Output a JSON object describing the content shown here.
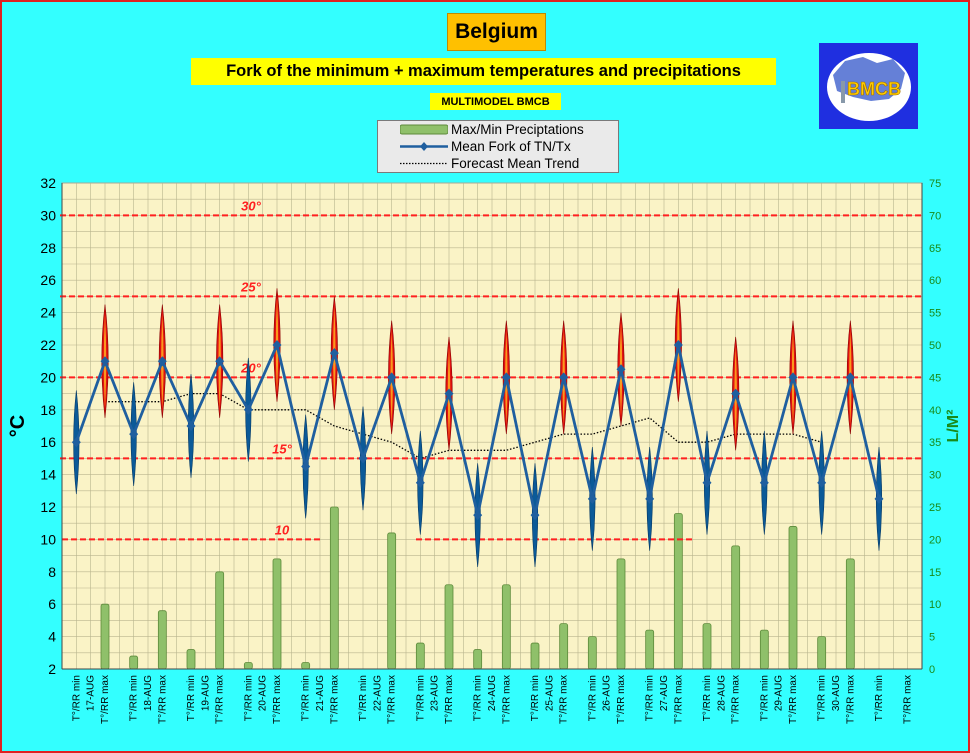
{
  "header": {
    "title": "Belgium",
    "subtitle": "Fork of the minimum + maximum temperatures and precipitations",
    "model": "MULTIMODEL BMCB"
  },
  "logo": {
    "text": "BMCB"
  },
  "legend": {
    "items": [
      {
        "label": "Max/Min Preciptations",
        "icon": "green-bar-icon"
      },
      {
        "label": "Mean Fork of TN/Tx",
        "icon": "blue-diamond-line-icon"
      },
      {
        "label": "Forecast Mean Trend",
        "icon": "dotted-line-icon"
      }
    ]
  },
  "colors": {
    "background": "#33ffff",
    "plot_background": "#faf3c6",
    "temp_line": "#1f5f9f",
    "min_marker": "#0b5a98",
    "max_marker": "#e01010",
    "threshold": "#ff2020",
    "precip": "#8fc06a",
    "right_axis": "#1a8a1a"
  },
  "chart_data": {
    "type": "line",
    "categories": [
      "T°/RR min",
      "T°/RR max",
      "T°/RR min",
      "T°/RR max",
      "T°/RR min",
      "T°/RR max",
      "T°/RR min",
      "T°/RR max",
      "T°/RR min",
      "T°/RR max",
      "T°/RR min",
      "T°/RR max",
      "T°/RR min",
      "T°/RR max",
      "T°/RR min",
      "T°/RR max",
      "T°/RR min",
      "T°/RR max",
      "T°/RR min",
      "T°/RR max",
      "T°/RR min",
      "T°/RR max",
      "T°/RR min",
      "T°/RR max",
      "T°/RR min",
      "T°/RR max",
      "T°/RR min",
      "T°/RR max",
      "T°/RR min",
      "T°/RR max"
    ],
    "dates": [
      "17-AUG",
      "18-AUG",
      "19-AUG",
      "20-AUG",
      "21-AUG",
      "22-AUG",
      "23-AUG",
      "24-AUG",
      "25-AUG",
      "26-AUG",
      "27-AUG",
      "28-AUG",
      "29-AUG",
      "30-AUG"
    ],
    "series": [
      {
        "name": "Mean Fork of TN/Tx",
        "axis": "left",
        "kind": "line",
        "values": [
          16,
          21,
          16.5,
          21,
          17,
          21,
          18,
          22,
          14.5,
          21.5,
          15,
          20,
          13.5,
          19,
          11.5,
          20,
          11.5,
          20,
          12.5,
          20.5,
          12.5,
          22,
          13.5,
          19,
          13.5,
          20,
          13.5,
          20,
          12.5,
          null
        ]
      },
      {
        "name": "Forecast Mean Trend",
        "axis": "left",
        "kind": "dotted",
        "values": [
          null,
          18.5,
          18.5,
          18.5,
          19,
          19,
          18,
          18,
          18,
          17,
          16.5,
          16,
          15,
          15.5,
          15.5,
          15.5,
          16,
          16.5,
          16.5,
          17,
          17.5,
          16,
          16,
          16.5,
          16.5,
          16.5,
          16,
          null,
          null,
          null
        ]
      },
      {
        "name": "Max/Min Preciptations",
        "axis": "right",
        "kind": "bar",
        "values": [
          0,
          10,
          2,
          9,
          3,
          15,
          1,
          17,
          1,
          25,
          0,
          21,
          4,
          13,
          3,
          13,
          4,
          7,
          5,
          17,
          6,
          24,
          7,
          19,
          6,
          22,
          5,
          17,
          null,
          null
        ]
      }
    ],
    "spread_half": [
      3.2,
      3.5,
      3.2,
      3.5,
      3.2,
      3.5,
      3.2,
      3.5,
      3.2,
      3.5,
      3.2,
      3.5,
      3.2,
      3.5,
      3.2,
      3.5,
      3.2,
      3.5,
      3.2,
      3.5,
      3.2,
      3.5,
      3.2,
      3.5,
      3.2,
      3.5,
      3.2,
      3.5,
      3.2,
      3.5
    ],
    "thresholds": [
      {
        "value": 30,
        "label": "30°"
      },
      {
        "value": 25,
        "label": "25°"
      },
      {
        "value": 20,
        "label": "20°"
      },
      {
        "value": 15,
        "label": "15°"
      },
      {
        "value": 10,
        "label": "10"
      }
    ],
    "ylabel": "°C",
    "y2label": "L/M²",
    "ylim": [
      2,
      32
    ],
    "yticks": [
      2,
      4,
      6,
      8,
      10,
      12,
      14,
      16,
      18,
      20,
      22,
      24,
      26,
      28,
      30,
      32
    ],
    "y2lim": [
      0,
      75
    ],
    "y2ticks": [
      0,
      5,
      10,
      15,
      20,
      25,
      30,
      35,
      40,
      45,
      50,
      55,
      60,
      65,
      70,
      75
    ],
    "grid": true,
    "legend_position": "top-center"
  }
}
